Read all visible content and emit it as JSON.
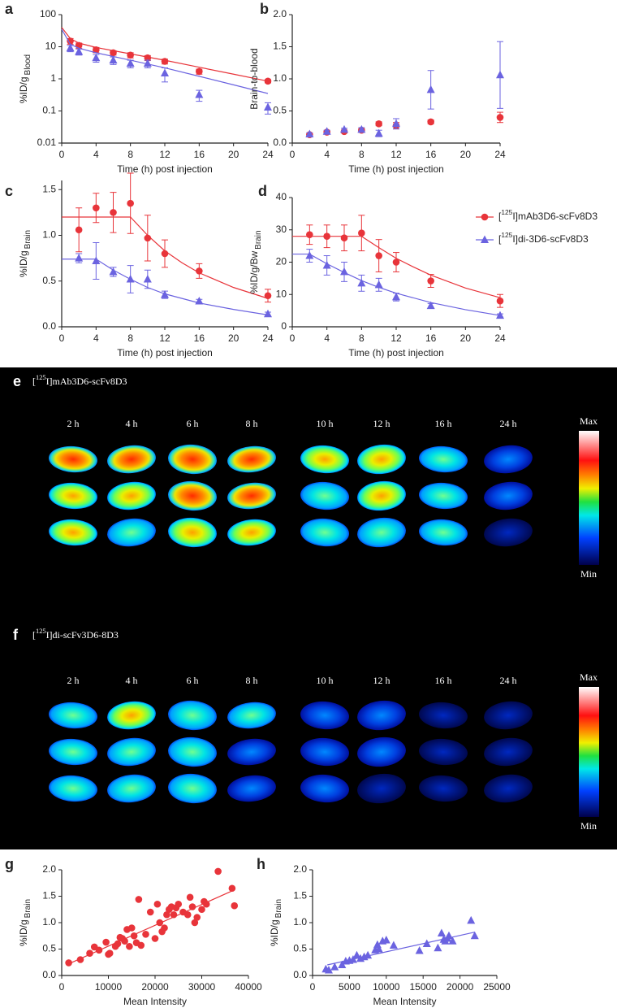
{
  "chart_data": [
    {
      "panel": "a",
      "type": "line",
      "x_label": "Time (h) post injection",
      "y_label": "%ID/g",
      "y_label_sub": "Blood",
      "xlim": [
        0,
        24
      ],
      "ylim": [
        0.01,
        100
      ],
      "y_scale": "log",
      "xticks": [
        0,
        4,
        8,
        12,
        16,
        20,
        24
      ],
      "yticks": [
        0.01,
        0.1,
        1,
        10,
        100
      ],
      "series": [
        {
          "color": "#e8343a",
          "marker": "circle",
          "x": [
            1,
            2,
            4,
            6,
            8,
            10,
            12,
            16,
            24
          ],
          "values": [
            15,
            11,
            8,
            6.5,
            5.5,
            4.5,
            3.5,
            1.7,
            0.85
          ],
          "errors": [
            3,
            2,
            1.5,
            1,
            1,
            0.8,
            0.6,
            0.3,
            0.1
          ],
          "fit": {
            "x": [
              0,
              1,
              2,
              4,
              8,
              12,
              16,
              20,
              24
            ],
            "values": [
              40,
              18,
              13,
              9.5,
              6,
              3.8,
              2.3,
              1.4,
              0.85
            ]
          }
        },
        {
          "color": "#6b63e0",
          "marker": "triangle",
          "x": [
            1,
            2,
            4,
            6,
            8,
            10,
            12,
            16,
            24
          ],
          "values": [
            9,
            7,
            4.5,
            3.8,
            3,
            3,
            1.5,
            0.32,
            0.13
          ],
          "errors": [
            2,
            1.5,
            1.2,
            1,
            0.8,
            0.8,
            0.7,
            0.12,
            0.05
          ],
          "fit": {
            "x": [
              0,
              1,
              2,
              4,
              8,
              12,
              16,
              20,
              24
            ],
            "values": [
              35,
              12,
              9,
              6.5,
              3.8,
              2.2,
              1.2,
              0.65,
              0.35
            ]
          }
        }
      ]
    },
    {
      "panel": "b",
      "type": "line",
      "x_label": "Time (h) post injection",
      "y_label": "Brain-to-blood",
      "xlim": [
        0,
        24
      ],
      "ylim": [
        0,
        2
      ],
      "xticks": [
        0,
        4,
        8,
        12,
        16,
        20,
        24
      ],
      "yticks": [
        {
          "value": 0,
          "label": "0.0"
        },
        0.5,
        {
          "value": 1,
          "label": "1.0"
        },
        1.5,
        {
          "value": 2,
          "label": "2.0"
        }
      ],
      "series": [
        {
          "color": "#e8343a",
          "marker": "circle",
          "x": [
            2,
            4,
            6,
            8,
            10,
            12,
            16,
            24
          ],
          "values": [
            0.13,
            0.17,
            0.18,
            0.2,
            0.3,
            0.27,
            0.33,
            0.4
          ],
          "errors": [
            0.02,
            0.02,
            0.02,
            0.02,
            0.03,
            0.05,
            0.03,
            0.08
          ]
        },
        {
          "color": "#6b63e0",
          "marker": "triangle",
          "x": [
            2,
            4,
            6,
            8,
            10,
            12,
            16,
            24
          ],
          "values": [
            0.14,
            0.18,
            0.21,
            0.21,
            0.15,
            0.3,
            0.83,
            1.06
          ],
          "errors": [
            0.02,
            0.02,
            0.02,
            0.03,
            0.05,
            0.08,
            0.3,
            0.52
          ]
        }
      ]
    },
    {
      "panel": "c",
      "type": "line",
      "x_label": "Time (h) post injection",
      "y_label": "%ID/g",
      "y_label_sub": "Brain",
      "xlim": [
        0,
        24
      ],
      "ylim": [
        0,
        1.6
      ],
      "xticks": [
        0,
        4,
        8,
        12,
        16,
        20,
        24
      ],
      "yticks": [
        {
          "value": 0,
          "label": "0.0"
        },
        0.5,
        {
          "value": 1,
          "label": "1.0"
        },
        1.5
      ],
      "series": [
        {
          "color": "#e8343a",
          "marker": "circle",
          "x": [
            2,
            4,
            6,
            8,
            10,
            12,
            16,
            24
          ],
          "values": [
            1.06,
            1.3,
            1.25,
            1.35,
            0.97,
            0.8,
            0.61,
            0.34
          ],
          "errors": [
            0.24,
            0.16,
            0.22,
            0.33,
            0.25,
            0.15,
            0.08,
            0.07
          ],
          "fit": {
            "x": [
              0,
              8,
              10,
              12,
              14,
              16,
              20,
              24
            ],
            "values": [
              1.2,
              1.2,
              1.0,
              0.83,
              0.7,
              0.59,
              0.43,
              0.31
            ]
          }
        },
        {
          "color": "#6b63e0",
          "marker": "triangle",
          "x": [
            2,
            4,
            6,
            8,
            10,
            12,
            16,
            24
          ],
          "values": [
            0.75,
            0.72,
            0.6,
            0.52,
            0.52,
            0.35,
            0.28,
            0.14
          ],
          "errors": [
            0.05,
            0.2,
            0.05,
            0.15,
            0.1,
            0.04,
            0.02,
            0.02
          ],
          "fit": {
            "x": [
              0,
              4,
              6,
              8,
              10,
              12,
              16,
              20,
              24
            ],
            "values": [
              0.74,
              0.74,
              0.62,
              0.52,
              0.43,
              0.36,
              0.26,
              0.19,
              0.13
            ]
          }
        }
      ]
    },
    {
      "panel": "d",
      "type": "line",
      "x_label": "Time (h) post injection",
      "y_label": "%ID/g/Bw",
      "y_label_sub": "Brain",
      "xlim": [
        0,
        24
      ],
      "ylim": [
        0,
        40
      ],
      "xticks": [
        0,
        4,
        8,
        12,
        16,
        20,
        24
      ],
      "yticks": [
        0,
        10,
        20,
        30,
        40
      ],
      "legend": true,
      "series": [
        {
          "name": "[125I]mAb3D6-scFv8D3",
          "color": "#e8343a",
          "marker": "circle",
          "x": [
            2,
            4,
            6,
            8,
            10,
            12,
            16,
            24
          ],
          "values": [
            28.5,
            28,
            27.5,
            29,
            22,
            20,
            14.2,
            8
          ],
          "errors": [
            3,
            3.5,
            4,
            5.5,
            5,
            3,
            2,
            2
          ],
          "fit": {
            "x": [
              0,
              8,
              10,
              12,
              14,
              16,
              20,
              24
            ],
            "values": [
              28,
              28,
              24.5,
              21.2,
              18.5,
              16,
              12,
              9
            ]
          }
        },
        {
          "name": "[125I]di-3D6-scFv8D3",
          "color": "#6b63e0",
          "marker": "triangle",
          "x": [
            2,
            4,
            6,
            8,
            10,
            12,
            16,
            24
          ],
          "values": [
            22,
            19,
            17,
            13.5,
            13,
            9.2,
            6.5,
            3.5
          ],
          "errors": [
            2,
            3,
            3,
            2.5,
            2,
            1.2,
            0.7,
            0.5
          ],
          "fit": {
            "x": [
              0,
              2,
              4,
              6,
              8,
              10,
              12,
              16,
              20,
              24
            ],
            "values": [
              22.5,
              22.5,
              19.5,
              16.8,
              14.3,
              12.2,
              10.4,
              7.5,
              5.3,
              3.5
            ]
          }
        }
      ]
    },
    {
      "panel": "g",
      "type": "scatter",
      "x_label": "Mean Intensity",
      "y_label": "%ID/g",
      "y_label_sub": "Brain",
      "xlim": [
        0,
        40000
      ],
      "ylim": [
        0,
        2
      ],
      "xticks": [
        0,
        10000,
        20000,
        30000,
        40000
      ],
      "yticks": [
        {
          "value": 0,
          "label": "0.0"
        },
        0.5,
        {
          "value": 1,
          "label": "1.0"
        },
        1.5,
        {
          "value": 2,
          "label": "2.0"
        }
      ],
      "series": [
        {
          "color": "#e8343a",
          "marker": "circle",
          "x": [
            1500,
            4000,
            6000,
            7000,
            8000,
            9500,
            10000,
            10300,
            11500,
            12000,
            12500,
            13000,
            13500,
            14000,
            14500,
            15000,
            15500,
            16000,
            16500,
            17000,
            18000,
            19000,
            20000,
            20500,
            21000,
            21500,
            22000,
            22500,
            23000,
            23500,
            24000,
            24500,
            25000,
            26000,
            27000,
            27500,
            28000,
            28500,
            29000,
            30000,
            30500,
            31000,
            33500,
            36500,
            37000
          ],
          "values": [
            0.24,
            0.3,
            0.42,
            0.54,
            0.48,
            0.63,
            0.4,
            0.42,
            0.55,
            0.6,
            0.72,
            0.7,
            0.65,
            0.87,
            0.55,
            0.9,
            0.75,
            0.62,
            1.44,
            0.57,
            0.78,
            1.2,
            0.7,
            1.35,
            1.0,
            0.83,
            0.9,
            1.15,
            1.25,
            1.3,
            1.15,
            1.28,
            1.35,
            1.2,
            1.15,
            1.48,
            1.3,
            1.0,
            1.1,
            1.25,
            1.4,
            1.35,
            1.97,
            1.65,
            1.32
          ],
          "fit": {
            "x": [
              1500,
              37000
            ],
            "values": [
              0.22,
              1.62
            ]
          }
        }
      ]
    },
    {
      "panel": "h",
      "type": "scatter",
      "x_label": "Mean Intensity",
      "y_label": "%ID/g",
      "y_label_sub": "Brain",
      "xlim": [
        0,
        25000
      ],
      "ylim": [
        0,
        2
      ],
      "xticks": [
        0,
        5000,
        10000,
        15000,
        20000,
        25000
      ],
      "yticks": [
        {
          "value": 0,
          "label": "0.0"
        },
        0.5,
        {
          "value": 1,
          "label": "1.0"
        },
        1.5,
        {
          "value": 2,
          "label": "2.0"
        }
      ],
      "series": [
        {
          "color": "#6b63e0",
          "marker": "triangle",
          "x": [
            1800,
            2200,
            3000,
            4000,
            4500,
            5000,
            5500,
            6000,
            6500,
            7000,
            7500,
            8500,
            8800,
            9000,
            9500,
            10000,
            11000,
            14500,
            15500,
            17000,
            17500,
            17800,
            18000,
            18300,
            18500,
            19000,
            21500,
            22000
          ],
          "values": [
            0.12,
            0.1,
            0.16,
            0.2,
            0.27,
            0.28,
            0.3,
            0.38,
            0.32,
            0.35,
            0.38,
            0.48,
            0.58,
            0.5,
            0.65,
            0.67,
            0.57,
            0.47,
            0.6,
            0.52,
            0.8,
            0.68,
            0.65,
            0.7,
            0.75,
            0.65,
            1.04,
            0.75
          ],
          "fit": {
            "x": [
              2000,
              22000
            ],
            "values": [
              0.2,
              0.82
            ]
          }
        }
      ]
    }
  ],
  "image_panels": [
    {
      "label": "e",
      "title": "[125I]mAb3D6-scFv8D3",
      "times": [
        "2 h",
        "4 h",
        "6 h",
        "8 h",
        "10 h",
        "12 h",
        "16 h",
        "24 h"
      ],
      "scale_max": "Max",
      "scale_min": "Min"
    },
    {
      "label": "f",
      "title": "[125I]di-scFv3D6-8D3",
      "times": [
        "2 h",
        "4 h",
        "6 h",
        "8 h",
        "10 h",
        "12 h",
        "16 h",
        "24 h"
      ],
      "scale_max": "Max",
      "scale_min": "Min"
    }
  ]
}
